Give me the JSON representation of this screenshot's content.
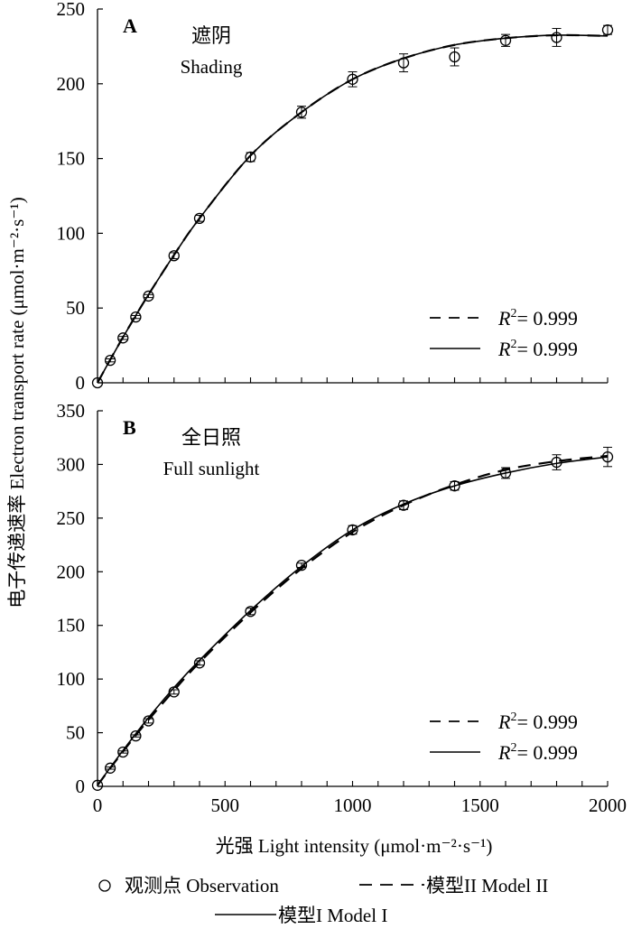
{
  "figure": {
    "ylabel": "电子传递速率 Electron transport rate (μmol·m⁻²·s⁻¹)",
    "xlabel": "光强 Light intensity (μmol·m⁻²·s⁻¹)",
    "legend": {
      "observation": "观测点 Observation",
      "model2": "模型II Model II",
      "model1": "模型I Model I"
    }
  },
  "chart_data": [
    {
      "type": "line",
      "panel": "A",
      "title_zh": "遮阴",
      "title_en": "Shading",
      "xlim": [
        0,
        2000
      ],
      "ylim": [
        0,
        250
      ],
      "xticks": [
        0,
        500,
        1000,
        1500,
        2000
      ],
      "yticks": [
        0,
        50,
        100,
        150,
        200,
        250
      ],
      "show_xtick_labels": false,
      "observations": {
        "x": [
          0,
          50,
          100,
          150,
          200,
          300,
          400,
          600,
          800,
          1000,
          1200,
          1400,
          1600,
          1800,
          2000
        ],
        "y": [
          0,
          15,
          30,
          44,
          58,
          85,
          110,
          151,
          181,
          203,
          214,
          218,
          229,
          231,
          236
        ],
        "err": [
          0,
          1,
          1,
          1,
          1,
          2,
          2,
          3,
          4,
          5,
          6,
          6,
          4,
          6,
          3
        ]
      },
      "series": [
        {
          "name": "Model II",
          "dash": "dashed",
          "r2_label": "= 0.999",
          "x": [
            0,
            50,
            100,
            150,
            200,
            300,
            400,
            600,
            800,
            1000,
            1200,
            1400,
            1600,
            1800,
            2000
          ],
          "y": [
            0,
            15.5,
            30.5,
            45,
            59,
            85.5,
            110,
            152,
            181,
            203,
            217,
            226,
            230.5,
            232.5,
            232
          ]
        },
        {
          "name": "Model I",
          "dash": "solid",
          "r2_label": "= 0.999",
          "x": [
            0,
            50,
            100,
            150,
            200,
            300,
            400,
            600,
            800,
            1000,
            1200,
            1400,
            1600,
            1800,
            2000
          ],
          "y": [
            0,
            15.5,
            30.5,
            45,
            59,
            85.5,
            110,
            152,
            181,
            203,
            217,
            226,
            230.5,
            232.5,
            232
          ]
        }
      ]
    },
    {
      "type": "line",
      "panel": "B",
      "title_zh": "全日照",
      "title_en": "Full sunlight",
      "xlim": [
        0,
        2000
      ],
      "ylim": [
        0,
        350
      ],
      "xticks": [
        0,
        500,
        1000,
        1500,
        2000
      ],
      "yticks": [
        0,
        50,
        100,
        150,
        200,
        250,
        300,
        350
      ],
      "show_xtick_labels": true,
      "observations": {
        "x": [
          0,
          50,
          100,
          150,
          200,
          300,
          400,
          600,
          800,
          1000,
          1200,
          1400,
          1600,
          1800,
          2000
        ],
        "y": [
          1,
          17,
          32,
          47,
          61,
          88,
          115,
          163,
          206,
          239,
          262,
          280,
          292,
          302,
          307
        ],
        "err": [
          0,
          1,
          1,
          1,
          2,
          2,
          2,
          3,
          2,
          4,
          4,
          4,
          5,
          7,
          9
        ]
      },
      "series": [
        {
          "name": "Model II",
          "dash": "dashed",
          "r2_label": "= 0.999",
          "x": [
            0,
            50,
            100,
            150,
            200,
            300,
            400,
            600,
            800,
            1000,
            1200,
            1400,
            1600,
            1800,
            2000
          ],
          "y": [
            1,
            17,
            32.5,
            47.5,
            62,
            89.5,
            115.5,
            162,
            203,
            237,
            262,
            281,
            295,
            303,
            308
          ]
        },
        {
          "name": "Model I",
          "dash": "solid",
          "r2_label": "= 0.999",
          "x": [
            0,
            50,
            100,
            150,
            200,
            300,
            400,
            600,
            800,
            1000,
            1200,
            1400,
            1600,
            1800,
            2000
          ],
          "y": [
            1,
            17.5,
            33.5,
            49,
            64,
            92,
            117.5,
            164,
            205,
            239,
            263,
            280,
            292,
            301,
            307
          ]
        }
      ]
    }
  ]
}
